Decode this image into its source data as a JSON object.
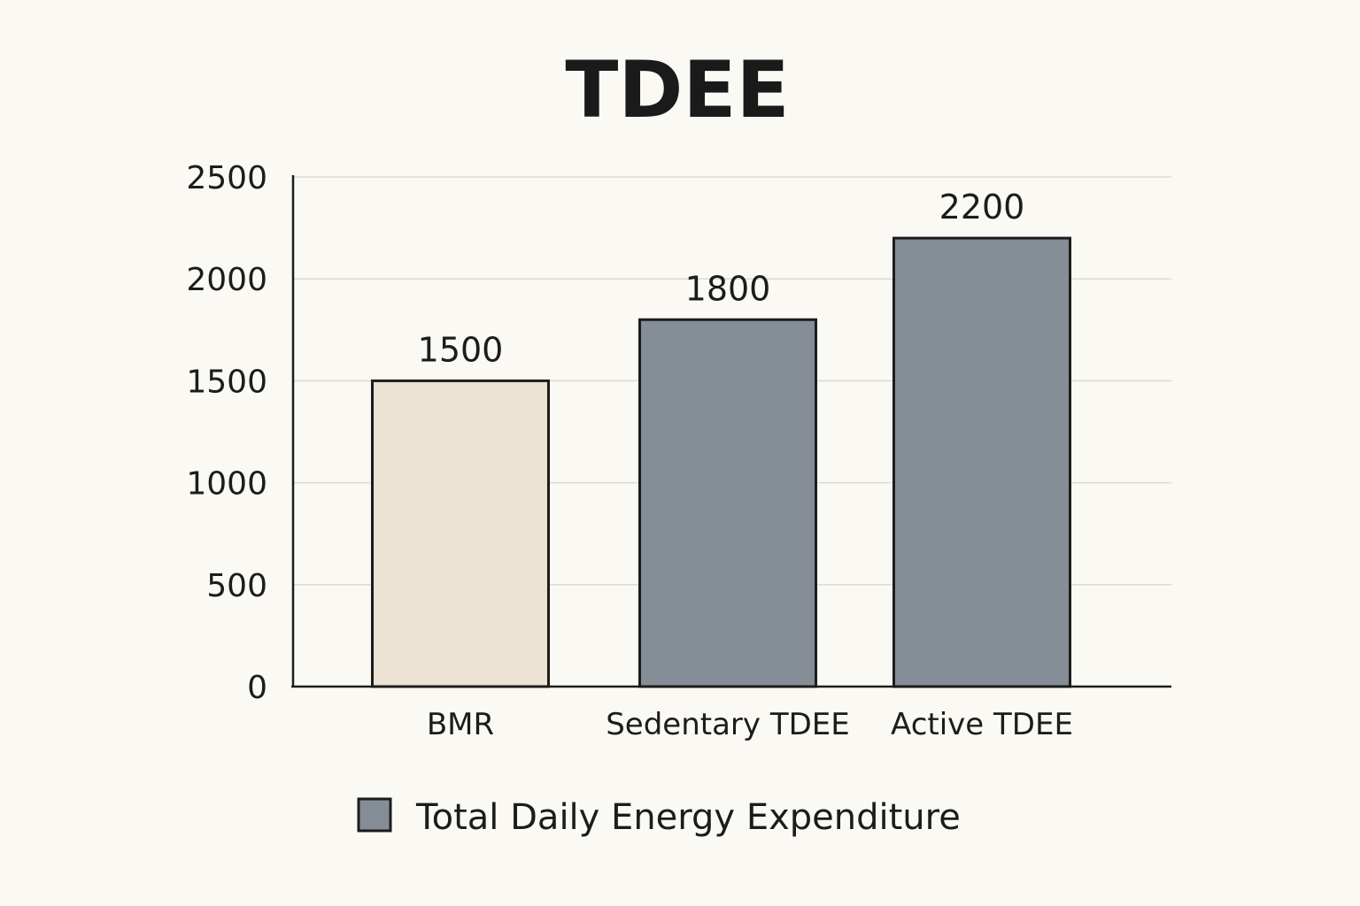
{
  "chart_data": {
    "type": "bar",
    "title": "TDEE",
    "xlabel": "",
    "ylabel": "",
    "categories": [
      "BMR",
      "Sedentary TDEE",
      "Active TDEE"
    ],
    "values": [
      1500,
      1800,
      2200
    ],
    "data_labels": [
      "1500",
      "1800",
      "2200"
    ],
    "bar_colors": [
      "#ebe2d3",
      "#858d96",
      "#858d96"
    ],
    "ylim": [
      0,
      2500
    ],
    "yticks": [
      0,
      500,
      1000,
      1500,
      2000,
      2500
    ],
    "ytick_labels": [
      "0",
      "500",
      "1000",
      "1500",
      "2000",
      "2500"
    ],
    "grid": true,
    "legend": {
      "position": "bottom",
      "entries": [
        {
          "label": "Total Daily Energy Expenditure",
          "color": "#858d96"
        }
      ]
    }
  }
}
